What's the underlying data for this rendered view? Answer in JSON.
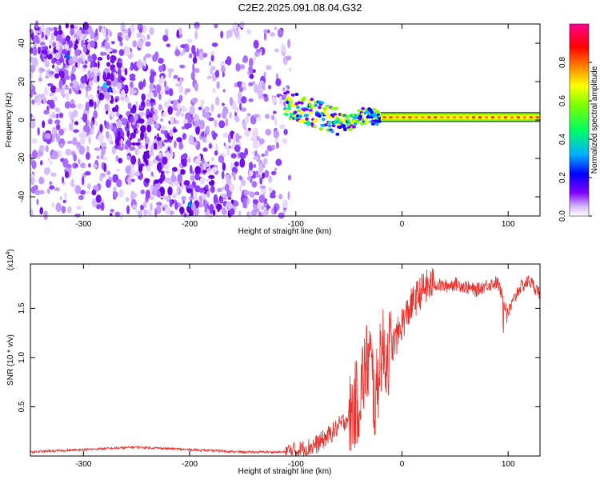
{
  "title": "C2E2.2025.091.08.04.G32",
  "chart_data": [
    {
      "type": "heatmap",
      "xlabel": "Height of straight line (km)",
      "ylabel": "Frequency (Hz)",
      "xlim": [
        -350,
        130
      ],
      "ylim": [
        -50,
        50
      ],
      "x_ticks": [
        -300,
        -200,
        -100,
        0,
        100
      ],
      "y_ticks": [
        -40,
        -20,
        0,
        20,
        40
      ],
      "colorbar": {
        "label": "Normalized spectral amplitude",
        "range": [
          0.0,
          1.0
        ],
        "ticks": [
          "0.0",
          "0.2",
          "0.4",
          "0.6",
          "0.8"
        ],
        "colors": [
          "#ffffff",
          "#c8a0ff",
          "#8000ff",
          "#0000ff",
          "#00c0ff",
          "#00ff80",
          "#80ff00",
          "#ffff00",
          "#ff8000",
          "#ff0000",
          "#ff0080"
        ]
      },
      "description_regions": {
        "noise_region_x": [
          -350,
          -105
        ],
        "signal_trace": {
          "x": [
            -110,
            -95,
            -80,
            -65,
            -50,
            -40,
            -30,
            -20,
            0,
            50,
            90,
            130
          ],
          "y": [
            8,
            6,
            3,
            0,
            -2,
            2,
            2,
            1,
            1,
            1,
            2,
            2
          ]
        }
      }
    },
    {
      "type": "line",
      "xlabel": "Height of straight line (km)",
      "ylabel": "SNR (10 * v/v)",
      "y_multiplier": "(x10",
      "y_multiplier_exp": "4",
      "y_multiplier_close": ")",
      "xlim": [
        -350,
        130
      ],
      "ylim": [
        0,
        1.95
      ],
      "x_ticks": [
        -300,
        -200,
        -100,
        0,
        100
      ],
      "y_ticks": [
        0.5,
        1.0,
        1.5
      ],
      "y_tick_labels": [
        "0.5",
        "1.0",
        "1.5"
      ],
      "line_color": "#e8312c",
      "series": [
        {
          "x": [
            -350,
            -330,
            -310,
            -290,
            -270,
            -250,
            -230,
            -210,
            -190,
            -170,
            -150,
            -130,
            -110,
            -100,
            -90,
            -80,
            -70,
            -60,
            -50,
            -40,
            -35,
            -30,
            -25,
            -20,
            -15,
            -10,
            -5,
            0,
            10,
            20,
            30,
            40,
            50,
            60,
            70,
            80,
            90,
            100,
            110,
            120,
            130
          ],
          "y": [
            0.04,
            0.05,
            0.06,
            0.07,
            0.08,
            0.09,
            0.08,
            0.07,
            0.06,
            0.05,
            0.04,
            0.04,
            0.04,
            0.05,
            0.08,
            0.12,
            0.2,
            0.3,
            0.4,
            0.6,
            0.9,
            1.0,
            0.5,
            1.1,
            1.0,
            1.1,
            1.2,
            1.35,
            1.55,
            1.7,
            1.75,
            1.72,
            1.75,
            1.72,
            1.68,
            1.74,
            1.76,
            1.45,
            1.7,
            1.78,
            1.65
          ]
        }
      ]
    }
  ]
}
